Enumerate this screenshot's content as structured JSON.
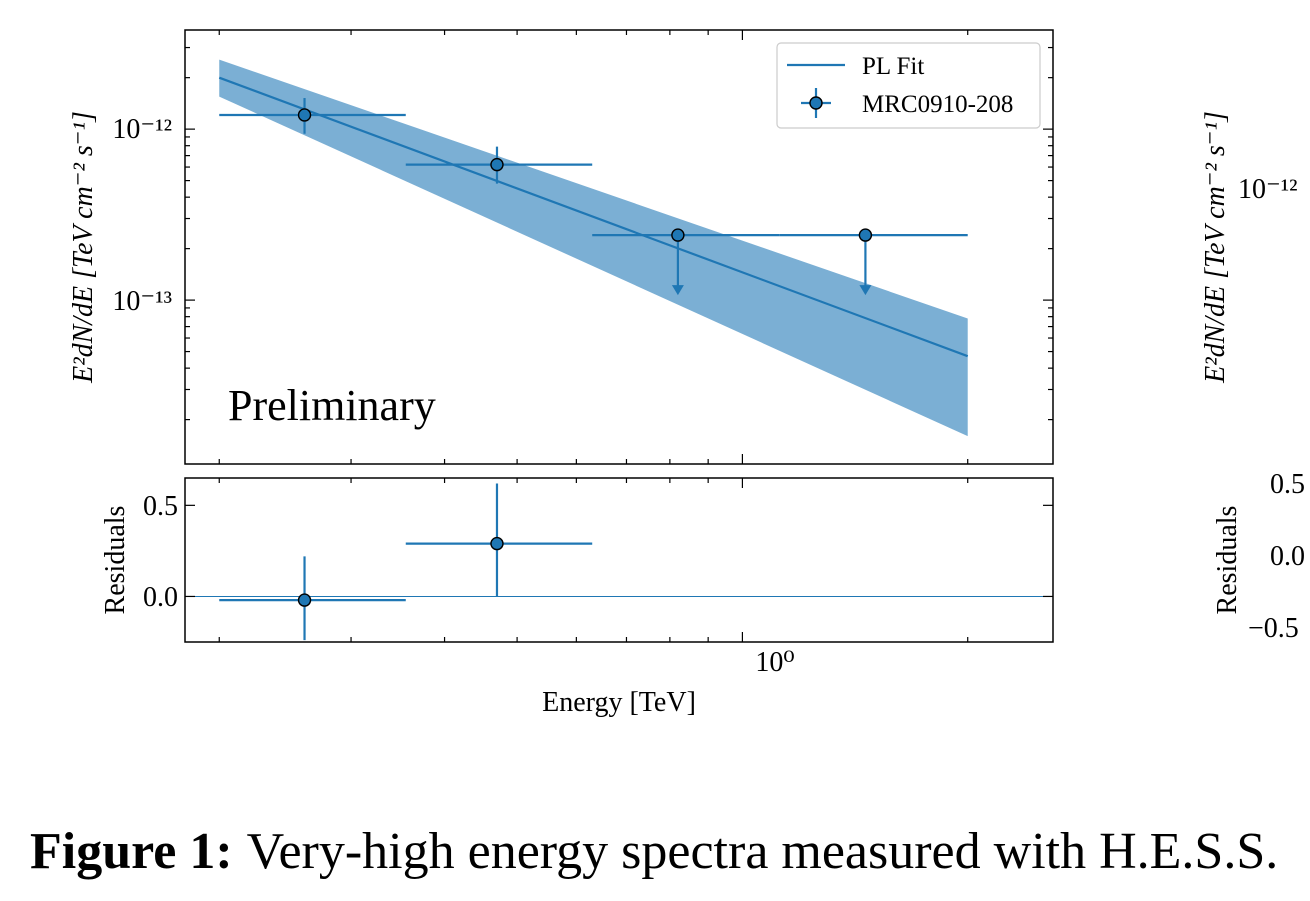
{
  "chart_data": {
    "type": "scatter",
    "x_scale": "log",
    "y_scale": "log",
    "xlim": [
      0.18,
      2.6
    ],
    "ylim": [
      1.1e-14,
      3.8e-12
    ],
    "xlabel": "Energy [TeV]",
    "ylabel": "E²dN/dE [TeV cm⁻² s⁻¹]",
    "x_tick_label": "10⁰",
    "y_tick_labels": [
      "10⁻¹²",
      "10⁻¹³"
    ],
    "annotation": "Preliminary",
    "legend": {
      "placement": "top-right",
      "entries": [
        "PL Fit",
        "MRC0910-208"
      ]
    },
    "fit": {
      "name": "PL Fit",
      "e_min": 0.2,
      "e_max": 2.0,
      "y_at_min": 2e-12,
      "y_at_max": 4.7e-14,
      "band_upper_at_min": 2.55e-12,
      "band_upper_at_max": 7.8e-14,
      "band_lower_at_min": 1.55e-12,
      "band_lower_at_max": 1.6e-14
    },
    "series": [
      {
        "name": "MRC0910-208",
        "points": [
          {
            "x": 0.26,
            "x_lo": 0.2,
            "x_hi": 0.355,
            "y": 1.21e-12,
            "y_lo": 9.4e-13,
            "y_hi": 1.52e-12,
            "upper_limit": false
          },
          {
            "x": 0.47,
            "x_lo": 0.355,
            "x_hi": 0.63,
            "y": 6.2e-13,
            "y_lo": 4.8e-13,
            "y_hi": 7.9e-13,
            "upper_limit": false
          },
          {
            "x": 0.82,
            "x_lo": 0.63,
            "x_hi": 1.12,
            "y": 2.4e-13,
            "upper_limit": true
          },
          {
            "x": 1.46,
            "x_lo": 1.12,
            "x_hi": 2.0,
            "y": 2.4e-13,
            "upper_limit": true
          }
        ]
      }
    ],
    "residuals": {
      "ylabel": "Residuals",
      "ylim": [
        -0.25,
        0.65
      ],
      "y_ticks": [
        "0.5",
        "0.0"
      ],
      "points": [
        {
          "x": 0.26,
          "x_lo": 0.2,
          "x_hi": 0.355,
          "y": -0.02,
          "y_lo": -0.24,
          "y_hi": 0.22
        },
        {
          "x": 0.47,
          "x_lo": 0.355,
          "x_hi": 0.63,
          "y": 0.29,
          "y_lo": 0.0,
          "y_hi": 0.62
        }
      ]
    },
    "second_panel": {
      "ylabel": "E²dN/dE [TeV cm⁻² s⁻¹]",
      "y_tick_label": "10⁻¹²",
      "residuals_ylabel": "Residuals",
      "residual_ticks": [
        "0.5",
        "0.0",
        "−0.5"
      ]
    }
  },
  "colors": {
    "series": "#1f77b4",
    "band": "#7bafd4",
    "marker_edge": "#000000",
    "annotation": "#808080"
  },
  "caption": {
    "label": "Figure 1:",
    "text": "Very-high energy spectra measured with H.E.S.S."
  }
}
